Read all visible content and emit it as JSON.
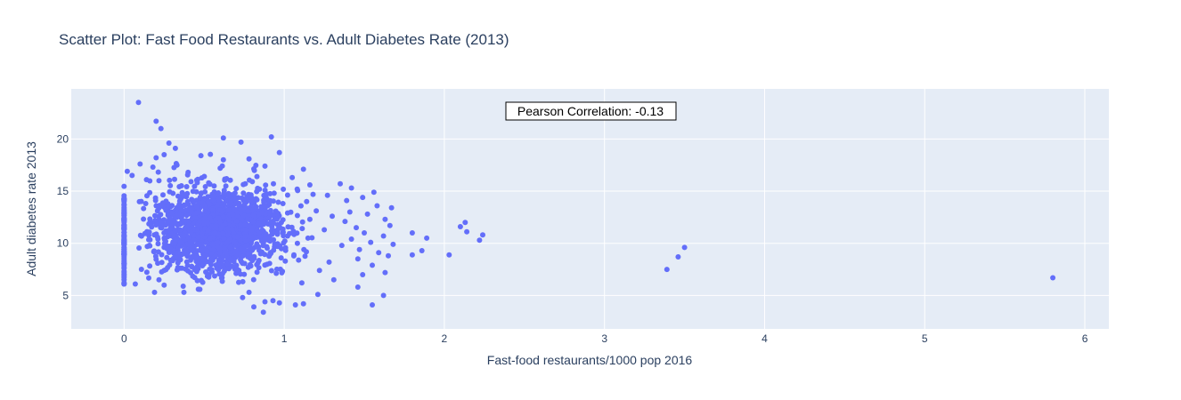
{
  "colors": {
    "marker": "#636efa",
    "plot_bg": "#e5ecf6",
    "grid": "#ffffff",
    "text": "#2a3f5f"
  },
  "chart_data": {
    "type": "scatter",
    "title": "Scatter Plot: Fast Food Restaurants vs. Adult Diabetes Rate (2013)",
    "xlabel": "Fast-food restaurants/1000 pop 2016",
    "ylabel": "Adult diabetes rate 2013",
    "xlim": [
      -0.33,
      6.15
    ],
    "ylim": [
      1.8,
      24.8
    ],
    "xticks": [
      0,
      1,
      2,
      3,
      4,
      5,
      6
    ],
    "yticks": [
      5,
      10,
      15,
      20
    ],
    "grid": true,
    "annotation": "Pearson Correlation: -0.13",
    "annotation_position": "top-center",
    "series": [
      {
        "points": [
          [
            0.09,
            23.5
          ],
          [
            0.2,
            21.7
          ],
          [
            0.23,
            21.0
          ],
          [
            0.28,
            19.6
          ],
          [
            0.32,
            19.1
          ],
          [
            0.62,
            20.1
          ],
          [
            0.92,
            20.2
          ],
          [
            0.73,
            19.7
          ],
          [
            0.97,
            18.7
          ],
          [
            0.48,
            18.4
          ],
          [
            0.2,
            18.2
          ],
          [
            0.25,
            18.5
          ],
          [
            0.62,
            18.0
          ],
          [
            0.78,
            18.1
          ],
          [
            0.88,
            17.4
          ],
          [
            1.12,
            17.1
          ],
          [
            0.18,
            17.3
          ],
          [
            0.1,
            17.6
          ],
          [
            0.33,
            17.5
          ],
          [
            0.6,
            17.2
          ],
          [
            0.02,
            16.9
          ],
          [
            0.05,
            16.5
          ],
          [
            0.4,
            16.8
          ],
          [
            0.83,
            16.4
          ],
          [
            1.05,
            16.3
          ],
          [
            0.14,
            16.1
          ],
          [
            1.16,
            15.6
          ],
          [
            1.35,
            15.7
          ],
          [
            1.42,
            15.3
          ],
          [
            1.56,
            14.9
          ],
          [
            1.18,
            14.7
          ],
          [
            1.27,
            14.6
          ],
          [
            1.14,
            14.0
          ],
          [
            1.39,
            14.1
          ],
          [
            1.49,
            14.4
          ],
          [
            1.58,
            13.6
          ],
          [
            1.67,
            13.4
          ],
          [
            1.2,
            13.1
          ],
          [
            1.41,
            13.0
          ],
          [
            1.52,
            12.8
          ],
          [
            1.63,
            12.3
          ],
          [
            1.3,
            12.6
          ],
          [
            1.16,
            12.3
          ],
          [
            1.38,
            12.1
          ],
          [
            1.45,
            11.5
          ],
          [
            1.66,
            11.7
          ],
          [
            1.25,
            11.3
          ],
          [
            1.5,
            11.0
          ],
          [
            1.62,
            10.7
          ],
          [
            1.42,
            10.4
          ],
          [
            1.54,
            10.1
          ],
          [
            1.68,
            9.9
          ],
          [
            1.36,
            9.8
          ],
          [
            1.47,
            9.4
          ],
          [
            1.59,
            9.1
          ],
          [
            1.65,
            8.8
          ],
          [
            1.28,
            8.2
          ],
          [
            1.46,
            8.5
          ],
          [
            1.55,
            7.9
          ],
          [
            1.22,
            7.4
          ],
          [
            1.49,
            7.0
          ],
          [
            1.63,
            7.2
          ],
          [
            1.31,
            6.5
          ],
          [
            1.46,
            5.8
          ],
          [
            1.62,
            5.0
          ],
          [
            1.55,
            4.1
          ],
          [
            1.21,
            5.1
          ],
          [
            1.11,
            6.2
          ],
          [
            1.12,
            4.2
          ],
          [
            1.07,
            4.1
          ],
          [
            0.97,
            4.3
          ],
          [
            0.88,
            4.4
          ],
          [
            0.81,
            3.9
          ],
          [
            0.87,
            3.4
          ],
          [
            0.93,
            4.5
          ],
          [
            0.74,
            4.8
          ],
          [
            0.19,
            5.3
          ],
          [
            0.25,
            6.0
          ],
          [
            0.07,
            6.1
          ],
          [
            0.78,
            5.3
          ],
          [
            1.8,
            11.0
          ],
          [
            1.86,
            9.3
          ],
          [
            1.89,
            10.5
          ],
          [
            1.8,
            8.9
          ],
          [
            2.03,
            8.9
          ],
          [
            2.1,
            11.6
          ],
          [
            2.13,
            12.0
          ],
          [
            2.14,
            11.1
          ],
          [
            2.22,
            10.3
          ],
          [
            2.24,
            10.8
          ],
          [
            3.39,
            7.5
          ],
          [
            3.46,
            8.7
          ],
          [
            3.5,
            9.6
          ],
          [
            5.8,
            6.7
          ]
        ]
      }
    ]
  }
}
